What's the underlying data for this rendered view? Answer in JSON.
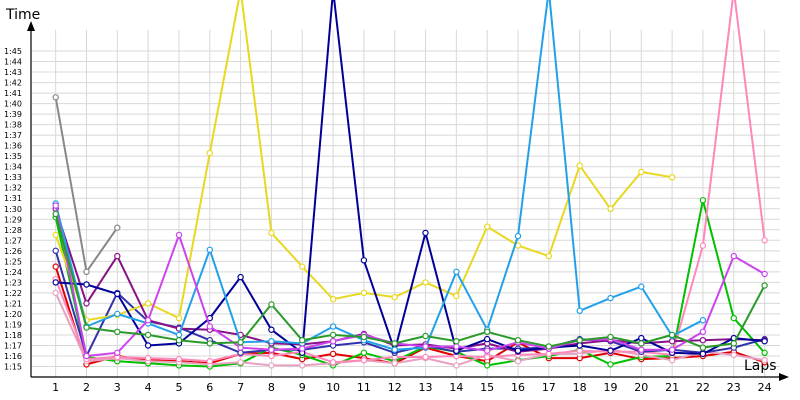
{
  "chart_data": {
    "type": "line",
    "title": "",
    "xlabel": "Laps",
    "ylabel": "Time",
    "x": [
      1,
      2,
      3,
      4,
      5,
      6,
      7,
      8,
      9,
      10,
      11,
      12,
      13,
      14,
      15,
      16,
      17,
      18,
      19,
      20,
      21,
      22,
      23,
      24
    ],
    "x_tick_labels": [
      "1",
      "2",
      "3",
      "4",
      "5",
      "6",
      "7",
      "8",
      "9",
      "10",
      "11",
      "12",
      "13",
      "14",
      "15",
      "16",
      "17",
      "18",
      "19",
      "20",
      "21",
      "22",
      "23",
      "24"
    ],
    "y_tick_labels": [
      "1:15",
      "1:16",
      "1:17",
      "1:18",
      "1:19",
      "1:20",
      "1:21",
      "1:22",
      "1:23",
      "1:24",
      "1:25",
      "1:26",
      "1:27",
      "1:28",
      "1:29",
      "1:30",
      "1:31",
      "1:32",
      "1:33",
      "1:34",
      "1:35",
      "1:36",
      "1:37",
      "1:38",
      "1:39",
      "1:40",
      "1:41",
      "1:42",
      "1:43",
      "1:44",
      "1:45"
    ],
    "y_unit": "seconds",
    "ylim": [
      74,
      107
    ],
    "xlim": [
      0.2,
      24.5
    ],
    "grid": true,
    "legend": "none",
    "series": [
      {
        "color": "#e00000",
        "values": [
          84.5,
          75.2,
          76.0,
          75.6,
          75.5,
          75.3,
          76.2,
          76.3,
          75.7,
          76.2,
          75.8,
          75.3,
          76.8,
          76.0,
          75.5,
          77.3,
          75.8,
          75.8,
          76.3,
          75.7,
          75.8,
          76.0,
          76.4,
          75.4
        ]
      },
      {
        "color": "#00c000",
        "values": [
          89.2,
          75.9,
          75.5,
          75.3,
          75.1,
          75.0,
          75.3,
          76.8,
          76.1,
          75.1,
          76.3,
          75.5,
          76.9,
          76.4,
          75.1,
          75.6,
          76.0,
          76.6,
          75.2,
          75.9,
          76.0,
          90.8,
          79.6,
          76.3
        ]
      },
      {
        "color": "#e8a0c0",
        "values": [
          82.0,
          75.5,
          75.8,
          75.5,
          75.4,
          75.2,
          75.4,
          75.1,
          75.1,
          75.3,
          75.6,
          75.3,
          75.8,
          75.1,
          76.1,
          75.5,
          76.2,
          76.2,
          76.6,
          76.1,
          75.6,
          76.4,
          76.1,
          75.6
        ]
      },
      {
        "color": "#ff88bb",
        "values": [
          83.3,
          75.7,
          75.9,
          75.8,
          75.7,
          75.5,
          76.2,
          76.0,
          76.4,
          75.4,
          75.6,
          75.9,
          75.9,
          76.0,
          75.9,
          76.1,
          76.2,
          76.5,
          76.4,
          76.4,
          76.1,
          86.5,
          115.0,
          87.0
        ]
      },
      {
        "color": "#3333aa",
        "values": [
          86.0,
          76.0,
          82.0,
          79.3,
          78.7,
          77.5,
          76.3,
          76.6,
          76.6,
          77.0,
          77.3,
          76.3,
          77.0,
          76.4,
          76.7,
          76.7,
          76.8,
          77.6,
          77.4,
          76.4,
          76.6,
          76.3,
          76.8,
          77.6
        ]
      },
      {
        "color": "#e8d820",
        "values": [
          87.5,
          79.4,
          79.9,
          81.0,
          79.6,
          95.3,
          120.0,
          87.7,
          84.5,
          81.4,
          82.0,
          81.6,
          83.0,
          81.7,
          88.3,
          86.5,
          85.5,
          94.1,
          90.0,
          93.5,
          93.0,
          null,
          null,
          null
        ]
      },
      {
        "color": "#888888",
        "values": [
          100.6,
          84.0,
          88.2,
          null,
          null,
          null,
          null,
          null,
          null,
          null,
          null,
          null,
          null,
          null,
          null,
          null,
          null,
          null,
          null,
          null,
          null,
          null,
          null,
          null
        ]
      },
      {
        "color": "#881188",
        "values": [
          90.0,
          81.0,
          85.5,
          79.4,
          78.6,
          78.5,
          78.0,
          77.2,
          77.1,
          77.4,
          78.1,
          77.0,
          77.1,
          76.7,
          77.2,
          76.4,
          76.7,
          77.2,
          77.5,
          77.2,
          77.4,
          77.5,
          77.6,
          77.5
        ]
      },
      {
        "color": "#000099",
        "values": [
          83.0,
          82.8,
          81.9,
          77.0,
          77.2,
          79.6,
          83.5,
          78.5,
          76.3,
          120.0,
          85.1,
          76.5,
          87.7,
          76.5,
          77.6,
          76.5,
          76.8,
          77.0,
          76.5,
          77.7,
          76.3,
          76.2,
          77.7,
          77.4
        ]
      },
      {
        "color": "#22a0e8",
        "values": [
          90.5,
          78.8,
          80.0,
          79.1,
          78.0,
          86.1,
          77.3,
          77.4,
          77.2,
          78.8,
          77.5,
          76.6,
          76.8,
          84.0,
          78.5,
          87.4,
          120.0,
          80.3,
          81.5,
          82.6,
          77.9,
          79.4,
          null,
          null
        ]
      },
      {
        "color": "#cc44ee",
        "values": [
          90.3,
          76.0,
          76.3,
          79.4,
          87.5,
          78.8,
          76.8,
          76.6,
          76.7,
          77.4,
          78.0,
          77.2,
          76.9,
          76.9,
          76.5,
          77.3,
          76.7,
          77.5,
          77.6,
          76.6,
          76.6,
          78.3,
          85.5,
          83.8
        ]
      },
      {
        "color": "#2a9a2a",
        "values": [
          89.5,
          78.7,
          78.3,
          78.0,
          77.5,
          77.2,
          77.3,
          80.9,
          77.5,
          78.0,
          77.8,
          77.2,
          77.9,
          77.4,
          78.3,
          77.5,
          76.9,
          77.5,
          77.8,
          77.2,
          78.0,
          76.8,
          77.2,
          82.7
        ]
      }
    ]
  }
}
